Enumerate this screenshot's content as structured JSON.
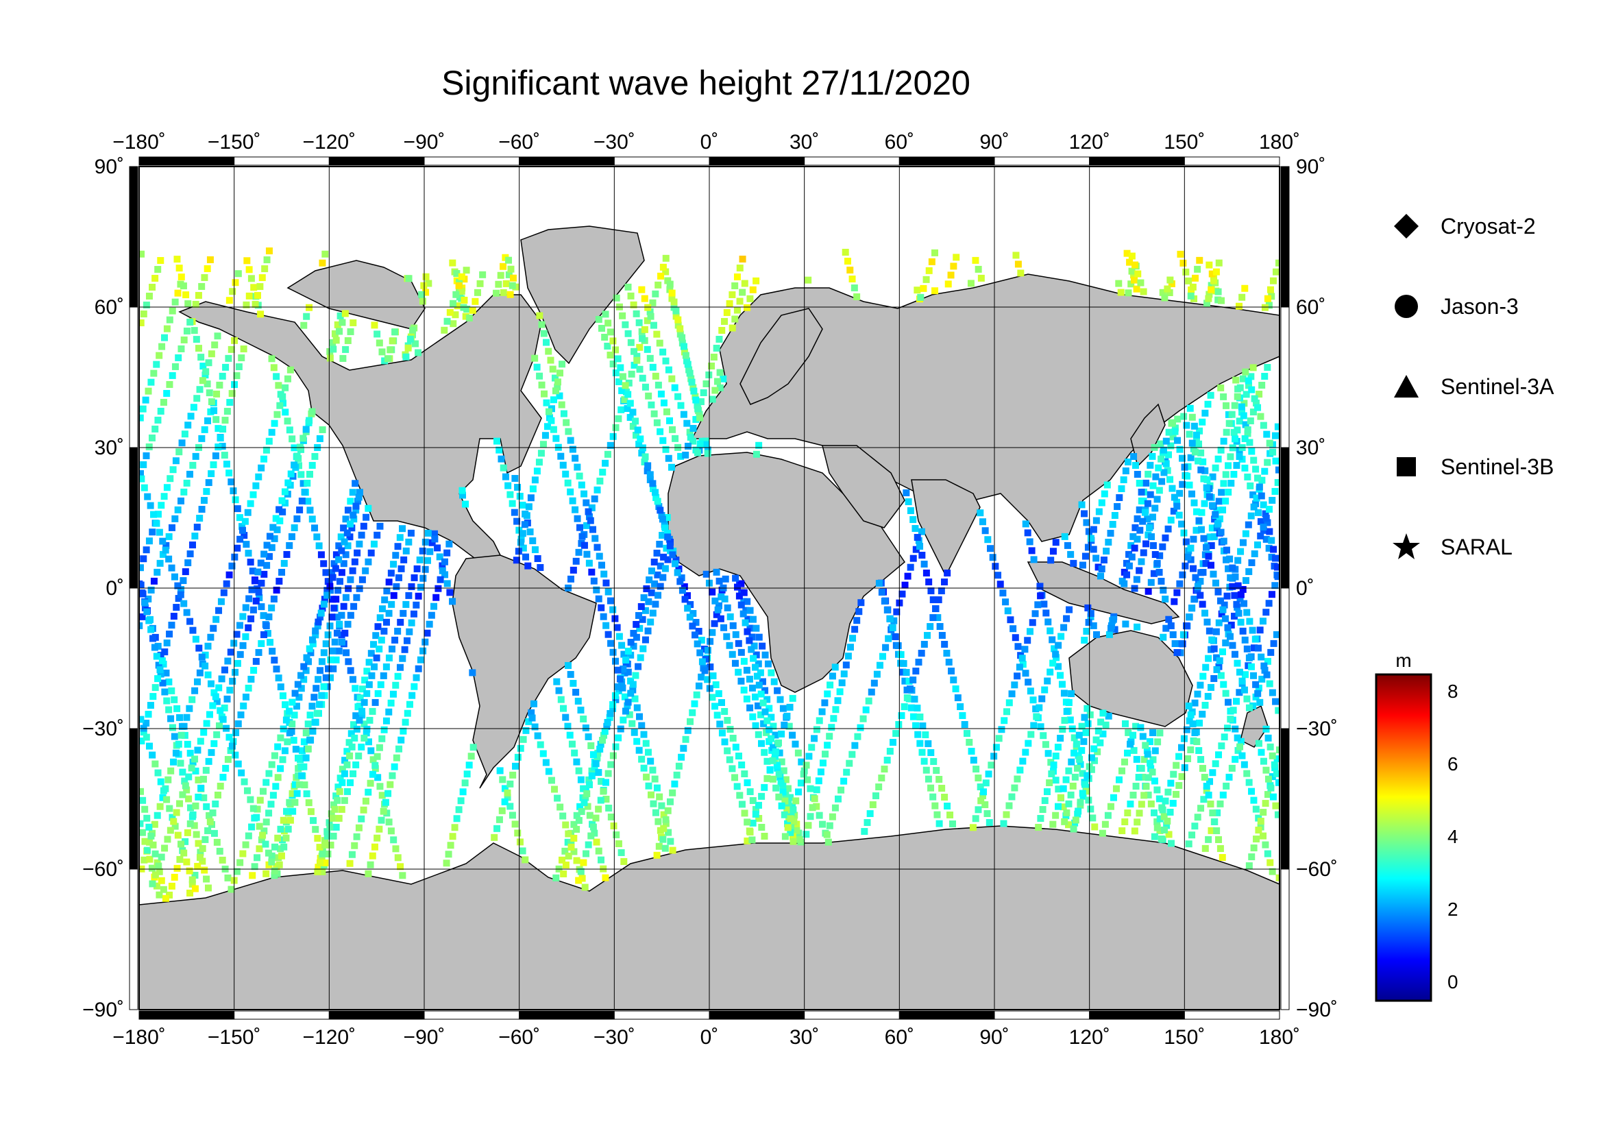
{
  "title": "Significant wave height 27/11/2020",
  "axes": {
    "lon_ticks": [
      -180,
      -150,
      -120,
      -90,
      -60,
      -30,
      0,
      30,
      60,
      90,
      120,
      150,
      180
    ],
    "lon_labels": [
      "−180˚",
      "−150˚",
      "−120˚",
      "−90˚",
      "−60˚",
      "−30˚",
      "0˚",
      "30˚",
      "60˚",
      "90˚",
      "120˚",
      "150˚",
      "180˚"
    ],
    "lat_ticks": [
      90,
      60,
      30,
      0,
      -30,
      -60,
      -90
    ],
    "lat_labels": [
      "90˚",
      "60˚",
      "30˚",
      "0˚",
      "−30˚",
      "−60˚",
      "−90˚"
    ],
    "lon_range": [
      -180,
      180
    ],
    "lat_range": [
      -90,
      90
    ],
    "grid": true
  },
  "legend": {
    "items": [
      {
        "label": "Cryosat-2",
        "icon": "diamond"
      },
      {
        "label": "Jason-3",
        "icon": "circle"
      },
      {
        "label": "Sentinel-3A",
        "icon": "triangle"
      },
      {
        "label": "Sentinel-3B",
        "icon": "square"
      },
      {
        "label": "SARAL",
        "icon": "star"
      }
    ]
  },
  "colorbar": {
    "unit": "m",
    "min": -0.5,
    "max": 8.5,
    "ticks": [
      0,
      2,
      4,
      6,
      8
    ],
    "tick_labels": [
      "0",
      "2",
      "4",
      "6",
      "8"
    ],
    "colors": [
      "#00008f",
      "#0000ff",
      "#007fff",
      "#00ffff",
      "#7fff7f",
      "#ffff00",
      "#ff7f00",
      "#ff0000",
      "#7f0000"
    ]
  },
  "colors": {
    "land": "#bebebe",
    "ocean": "#ffffff",
    "grid": "#000000"
  }
}
